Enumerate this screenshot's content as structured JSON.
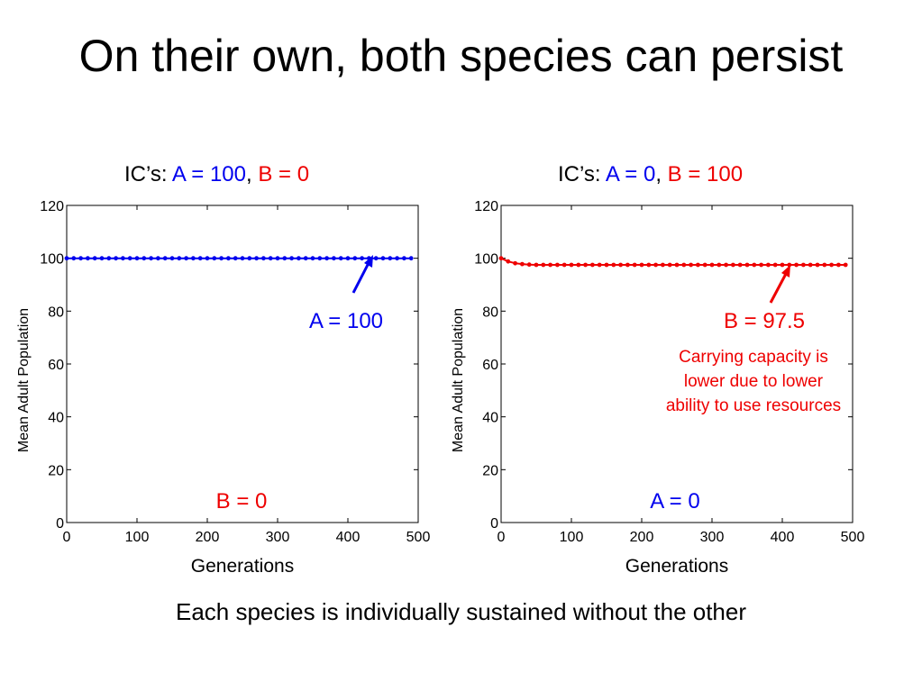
{
  "title": "On their own, both species can persist",
  "footer": "Each species is individually sustained without the other",
  "colors": {
    "species_a": "#0000ee",
    "species_b": "#ee0000",
    "axis": "#000000"
  },
  "panels": [
    {
      "heading": {
        "prefix": "IC’s: ",
        "a": "A = 100",
        "sep": ", ",
        "b": "B = 0"
      },
      "label_main": "A = 100",
      "label_other": "B = 0",
      "note": []
    },
    {
      "heading": {
        "prefix": "IC’s: ",
        "a": "A = 0",
        "sep": ", ",
        "b": "B = 100"
      },
      "label_main": "B = 97.5",
      "label_other": "A = 0",
      "note": [
        "Carrying capacity is",
        "lower due to lower",
        "ability to use resources"
      ]
    }
  ],
  "chart_data": [
    {
      "type": "line",
      "xlabel": "Generations",
      "ylabel": "Mean Adult Population",
      "xlim": [
        0,
        500
      ],
      "ylim": [
        0,
        120
      ],
      "xticks": [
        0,
        100,
        200,
        300,
        400,
        500
      ],
      "yticks": [
        0,
        20,
        40,
        60,
        80,
        100,
        120
      ],
      "grid": false,
      "series": [
        {
          "color": "#0000ee",
          "x": [
            0,
            10,
            20,
            30,
            40,
            50,
            60,
            70,
            80,
            90,
            100,
            110,
            120,
            130,
            140,
            150,
            160,
            170,
            180,
            190,
            200,
            210,
            220,
            230,
            240,
            250,
            260,
            270,
            280,
            290,
            300,
            310,
            320,
            330,
            340,
            350,
            360,
            370,
            380,
            390,
            400,
            410,
            420,
            430,
            440,
            450,
            460,
            470,
            480,
            490
          ],
          "y": [
            100,
            100,
            100,
            100,
            100,
            100,
            100,
            100,
            100,
            100,
            100,
            100,
            100,
            100,
            100,
            100,
            100,
            100,
            100,
            100,
            100,
            100,
            100,
            100,
            100,
            100,
            100,
            100,
            100,
            100,
            100,
            100,
            100,
            100,
            100,
            100,
            100,
            100,
            100,
            100,
            100,
            100,
            100,
            100,
            100,
            100,
            100,
            100,
            100,
            100
          ]
        }
      ]
    },
    {
      "type": "line",
      "xlabel": "Generations",
      "ylabel": "Mean Adult Population",
      "xlim": [
        0,
        500
      ],
      "ylim": [
        0,
        120
      ],
      "xticks": [
        0,
        100,
        200,
        300,
        400,
        500
      ],
      "yticks": [
        0,
        20,
        40,
        60,
        80,
        100,
        120
      ],
      "grid": false,
      "series": [
        {
          "color": "#ee0000",
          "x": [
            0,
            10,
            20,
            30,
            40,
            50,
            60,
            70,
            80,
            90,
            100,
            110,
            120,
            130,
            140,
            150,
            160,
            170,
            180,
            190,
            200,
            210,
            220,
            230,
            240,
            250,
            260,
            270,
            280,
            290,
            300,
            310,
            320,
            330,
            340,
            350,
            360,
            370,
            380,
            390,
            400,
            410,
            420,
            430,
            440,
            450,
            460,
            470,
            480,
            490
          ],
          "y": [
            100,
            98.8,
            98.1,
            97.8,
            97.6,
            97.5,
            97.5,
            97.5,
            97.5,
            97.5,
            97.5,
            97.5,
            97.5,
            97.5,
            97.5,
            97.5,
            97.5,
            97.5,
            97.5,
            97.5,
            97.5,
            97.5,
            97.5,
            97.5,
            97.5,
            97.5,
            97.5,
            97.5,
            97.5,
            97.5,
            97.5,
            97.5,
            97.5,
            97.5,
            97.5,
            97.5,
            97.5,
            97.5,
            97.5,
            97.5,
            97.5,
            97.5,
            97.5,
            97.5,
            97.5,
            97.5,
            97.5,
            97.5,
            97.5,
            97.5
          ]
        }
      ]
    }
  ]
}
